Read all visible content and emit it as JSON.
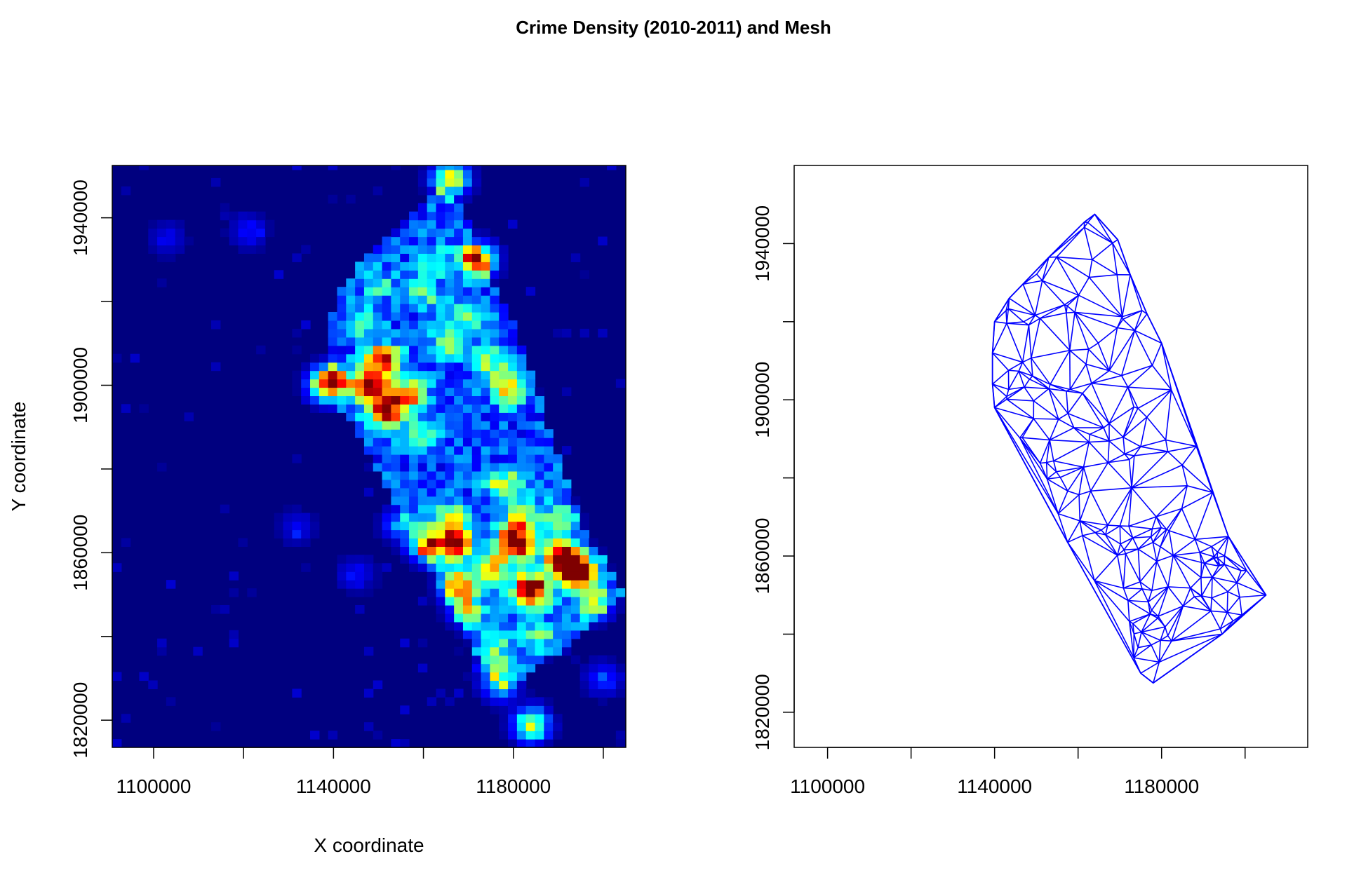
{
  "title": "Crime Density (2010-2011) and Mesh",
  "chart_data": [
    {
      "type": "heatmap",
      "name": "crime-density",
      "xlabel": "X coordinate",
      "ylabel": "Y coordinate",
      "xlim": [
        1090800,
        1205000
      ],
      "ylim": [
        1813500,
        1952500
      ],
      "x_ticks": [
        1100000,
        1120000,
        1140000,
        1160000,
        1180000,
        1200000
      ],
      "x_tick_labels": [
        "1100000",
        "1140000",
        "1180000"
      ],
      "y_ticks": [
        1820000,
        1840000,
        1860000,
        1880000,
        1900000,
        1920000,
        1940000
      ],
      "y_tick_labels": [
        "1820000",
        "1860000",
        "1900000",
        "1940000"
      ],
      "colormap": [
        "#00007f",
        "#0000ff",
        "#007fff",
        "#00ffff",
        "#7fff7f",
        "#ffff00",
        "#ff7f00",
        "#ff0000",
        "#7f0000"
      ],
      "background_color": "#00007f",
      "hotspots": [
        {
          "x": 1139000,
          "y": 1900500,
          "intensity": 1.0
        },
        {
          "x": 1148000,
          "y": 1899500,
          "intensity": 0.9
        },
        {
          "x": 1152000,
          "y": 1894000,
          "intensity": 0.8
        },
        {
          "x": 1151000,
          "y": 1906000,
          "intensity": 0.75
        },
        {
          "x": 1157000,
          "y": 1898000,
          "intensity": 0.6
        },
        {
          "x": 1172000,
          "y": 1930000,
          "intensity": 0.85
        },
        {
          "x": 1179000,
          "y": 1899000,
          "intensity": 0.55
        },
        {
          "x": 1166000,
          "y": 1949500,
          "intensity": 0.7
        },
        {
          "x": 1175000,
          "y": 1906000,
          "intensity": 0.4
        },
        {
          "x": 1180500,
          "y": 1862500,
          "intensity": 1.0
        },
        {
          "x": 1184000,
          "y": 1851000,
          "intensity": 1.0
        },
        {
          "x": 1194500,
          "y": 1855500,
          "intensity": 0.95
        },
        {
          "x": 1191000,
          "y": 1859000,
          "intensity": 0.8
        },
        {
          "x": 1167500,
          "y": 1862000,
          "intensity": 0.75
        },
        {
          "x": 1161000,
          "y": 1862000,
          "intensity": 0.7
        },
        {
          "x": 1168000,
          "y": 1852000,
          "intensity": 0.65
        },
        {
          "x": 1175500,
          "y": 1856000,
          "intensity": 0.55
        },
        {
          "x": 1178000,
          "y": 1876000,
          "intensity": 0.5
        },
        {
          "x": 1166000,
          "y": 1868000,
          "intensity": 0.5
        },
        {
          "x": 1198000,
          "y": 1848000,
          "intensity": 0.45
        },
        {
          "x": 1177000,
          "y": 1829000,
          "intensity": 0.45
        },
        {
          "x": 1184000,
          "y": 1819000,
          "intensity": 0.6
        },
        {
          "x": 1176000,
          "y": 1837000,
          "intensity": 0.35
        },
        {
          "x": 1159000,
          "y": 1888000,
          "intensity": 0.3
        },
        {
          "x": 1165000,
          "y": 1910000,
          "intensity": 0.3
        },
        {
          "x": 1146000,
          "y": 1915000,
          "intensity": 0.25
        },
        {
          "x": 1160000,
          "y": 1922000,
          "intensity": 0.3
        },
        {
          "x": 1170000,
          "y": 1917000,
          "intensity": 0.35
        },
        {
          "x": 1162000,
          "y": 1930000,
          "intensity": 0.3
        },
        {
          "x": 1150000,
          "y": 1924000,
          "intensity": 0.25
        },
        {
          "x": 1186000,
          "y": 1840000,
          "intensity": 0.3
        },
        {
          "x": 1155000,
          "y": 1867000,
          "intensity": 0.3
        },
        {
          "x": 1170000,
          "y": 1846000,
          "intensity": 0.35
        },
        {
          "x": 1182000,
          "y": 1868000,
          "intensity": 0.4
        },
        {
          "x": 1200000,
          "y": 1830000,
          "intensity": 0.2
        },
        {
          "x": 1121000,
          "y": 1937000,
          "intensity": 0.15
        },
        {
          "x": 1103000,
          "y": 1935000,
          "intensity": 0.12
        },
        {
          "x": 1145000,
          "y": 1855000,
          "intensity": 0.15
        },
        {
          "x": 1132000,
          "y": 1866000,
          "intensity": 0.12
        },
        {
          "x": 1190000,
          "y": 1868000,
          "intensity": 0.3
        }
      ]
    },
    {
      "type": "mesh",
      "name": "triangulation-mesh",
      "xlim": [
        1092000,
        1215000
      ],
      "ylim": [
        1811000,
        1960000
      ],
      "x_ticks": [
        1100000,
        1120000,
        1140000,
        1160000,
        1180000,
        1200000
      ],
      "x_tick_labels": [
        "1100000",
        "1140000",
        "1180000"
      ],
      "y_ticks": [
        1820000,
        1840000,
        1860000,
        1880000,
        1900000,
        1920000,
        1940000
      ],
      "y_tick_labels": [
        "1820000",
        "1860000",
        "1900000",
        "1940000"
      ],
      "line_color": "#0000ff",
      "boundary": [
        [
          1164000,
          1947500
        ],
        [
          1169500,
          1941000
        ],
        [
          1172500,
          1932000
        ],
        [
          1176500,
          1922000
        ],
        [
          1180000,
          1914500
        ],
        [
          1196000,
          1865000
        ],
        [
          1205000,
          1850000
        ],
        [
          1194500,
          1840000
        ],
        [
          1178000,
          1827500
        ],
        [
          1175000,
          1830000
        ],
        [
          1157500,
          1863500
        ],
        [
          1140000,
          1898000
        ],
        [
          1139500,
          1904000
        ],
        [
          1139500,
          1912000
        ],
        [
          1140000,
          1920000
        ],
        [
          1143500,
          1926000
        ],
        [
          1153000,
          1936500
        ],
        [
          1161500,
          1945500
        ]
      ]
    }
  ]
}
